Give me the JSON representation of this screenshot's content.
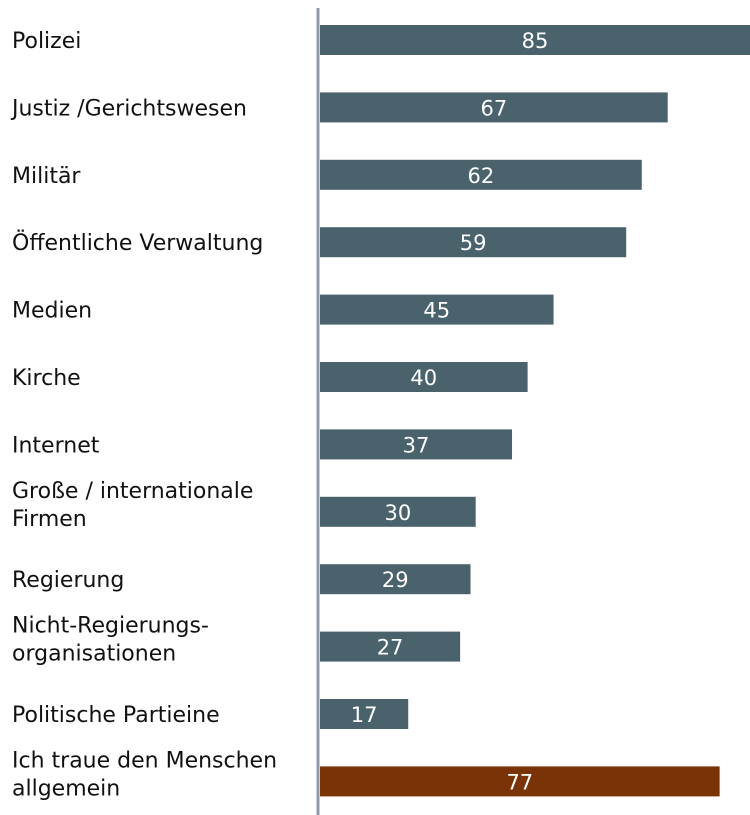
{
  "chart_data": {
    "type": "hbar",
    "categories": [
      "Polizei",
      "Justiz /Gerichtswesen",
      "Militär",
      "Öffentliche Verwaltung",
      "Medien",
      "Kirche",
      "Internet",
      "Große / internationale\nFirmen",
      "Regierung",
      "Nicht-Regierungs-\norganisationen",
      "Politische Partieine",
      "Ich traue den Menschen\nallgemein"
    ],
    "values": [
      85,
      67,
      62,
      59,
      45,
      40,
      37,
      30,
      29,
      27,
      17,
      77
    ],
    "colors": [
      "#4a626c",
      "#4a626c",
      "#4a626c",
      "#4a626c",
      "#4a626c",
      "#4a626c",
      "#4a626c",
      "#4a626c",
      "#4a626c",
      "#4a626c",
      "#4a626c",
      "#7a3306"
    ]
  }
}
